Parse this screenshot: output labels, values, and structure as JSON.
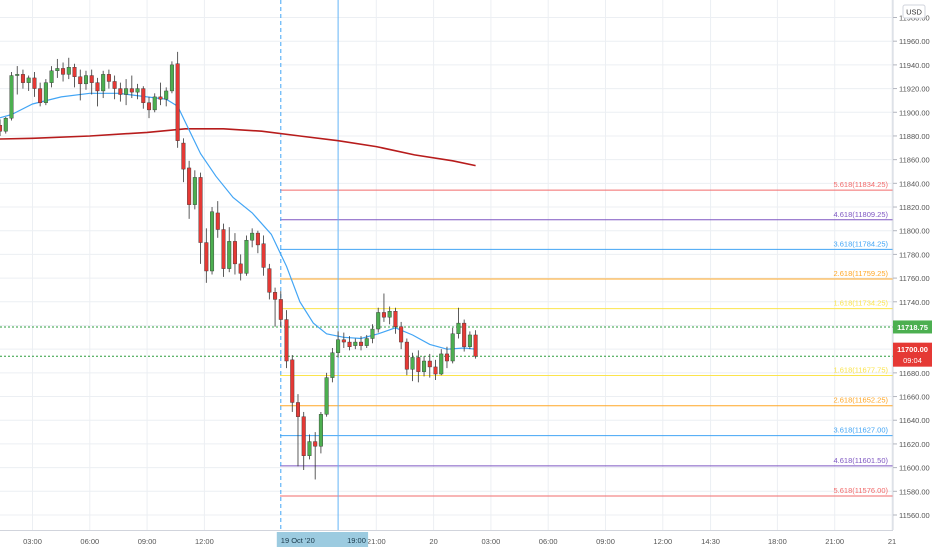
{
  "chart_data": {
    "type": "candlestick",
    "currency_label": "USD",
    "y_axis": {
      "min": 11545,
      "max": 11990,
      "ticks": [
        11980,
        11960,
        11940,
        11920,
        11900,
        11880,
        11860,
        11840,
        11820,
        11800,
        11780,
        11760,
        11740,
        11720,
        11700,
        11680,
        11660,
        11640,
        11620,
        11600,
        11580,
        11560
      ]
    },
    "x_axis": {
      "ticks": [
        {
          "label": "03:00",
          "t": 3
        },
        {
          "label": "06:00",
          "t": 6
        },
        {
          "label": "09:00",
          "t": 9
        },
        {
          "label": "12:00",
          "t": 12
        },
        {
          "label": "21:00",
          "t": 21
        },
        {
          "label": "20",
          "t": 24
        },
        {
          "label": "03:00",
          "t": 27
        },
        {
          "label": "06:00",
          "t": 30
        },
        {
          "label": "09:00",
          "t": 33
        },
        {
          "label": "12:00",
          "t": 36
        },
        {
          "label": "14:30",
          "t": 38.5
        },
        {
          "label": "18:00",
          "t": 42
        },
        {
          "label": "21:00",
          "t": 45
        },
        {
          "label": "21",
          "t": 48
        }
      ],
      "markers": [
        {
          "label": "19 Oct '20",
          "t": 16
        },
        {
          "label": "19:00",
          "t": 19
        }
      ]
    },
    "candles": [
      {
        "t": 0.1,
        "o": 11893,
        "h": 11901,
        "c": 11888,
        "l": 11883
      },
      {
        "t": 0.4,
        "o": 11888,
        "h": 11897,
        "c": 11894,
        "l": 11884
      },
      {
        "t": 0.7,
        "o": 11894,
        "h": 11898,
        "c": 11887,
        "l": 11883
      },
      {
        "t": 1.0,
        "o": 11887,
        "h": 11893,
        "c": 11889,
        "l": 11881
      },
      {
        "t": 1.3,
        "o": 11889,
        "h": 11894,
        "c": 11884,
        "l": 11880
      },
      {
        "t": 1.6,
        "o": 11884,
        "h": 11896,
        "c": 11895,
        "l": 11882
      },
      {
        "t": 1.9,
        "o": 11895,
        "h": 11934,
        "c": 11931,
        "l": 11893
      },
      {
        "t": 2.2,
        "o": 11931,
        "h": 11939,
        "c": 11932,
        "l": 11915
      },
      {
        "t": 2.5,
        "o": 11932,
        "h": 11936,
        "c": 11925,
        "l": 11920
      },
      {
        "t": 2.8,
        "o": 11925,
        "h": 11931,
        "c": 11929,
        "l": 11918
      },
      {
        "t": 3.1,
        "o": 11929,
        "h": 11934,
        "c": 11920,
        "l": 11913
      },
      {
        "t": 3.4,
        "o": 11920,
        "h": 11925,
        "c": 11908,
        "l": 11905
      },
      {
        "t": 3.7,
        "o": 11908,
        "h": 11928,
        "c": 11925,
        "l": 11906
      },
      {
        "t": 4.0,
        "o": 11925,
        "h": 11939,
        "c": 11935,
        "l": 11921
      },
      {
        "t": 4.3,
        "o": 11935,
        "h": 11945,
        "c": 11937,
        "l": 11929
      },
      {
        "t": 4.6,
        "o": 11937,
        "h": 11942,
        "c": 11932,
        "l": 11926
      },
      {
        "t": 4.9,
        "o": 11932,
        "h": 11946,
        "c": 11938,
        "l": 11928
      },
      {
        "t": 5.2,
        "o": 11938,
        "h": 11941,
        "c": 11930,
        "l": 11921
      },
      {
        "t": 5.5,
        "o": 11930,
        "h": 11936,
        "c": 11924,
        "l": 11910
      },
      {
        "t": 5.8,
        "o": 11924,
        "h": 11935,
        "c": 11931,
        "l": 11919
      },
      {
        "t": 6.1,
        "o": 11931,
        "h": 11936,
        "c": 11925,
        "l": 11915
      },
      {
        "t": 6.4,
        "o": 11925,
        "h": 11929,
        "c": 11918,
        "l": 11905
      },
      {
        "t": 6.7,
        "o": 11918,
        "h": 11935,
        "c": 11932,
        "l": 11912
      },
      {
        "t": 7.0,
        "o": 11932,
        "h": 11936,
        "c": 11926,
        "l": 11920
      },
      {
        "t": 7.3,
        "o": 11926,
        "h": 11931,
        "c": 11920,
        "l": 11911
      },
      {
        "t": 7.6,
        "o": 11920,
        "h": 11925,
        "c": 11915,
        "l": 11909
      },
      {
        "t": 7.9,
        "o": 11915,
        "h": 11928,
        "c": 11920,
        "l": 11906
      },
      {
        "t": 8.2,
        "o": 11920,
        "h": 11931,
        "c": 11917,
        "l": 11912
      },
      {
        "t": 8.5,
        "o": 11917,
        "h": 11924,
        "c": 11920,
        "l": 11911
      },
      {
        "t": 8.8,
        "o": 11920,
        "h": 11922,
        "c": 11908,
        "l": 11903
      },
      {
        "t": 9.1,
        "o": 11908,
        "h": 11913,
        "c": 11902,
        "l": 11895
      },
      {
        "t": 9.4,
        "o": 11902,
        "h": 11916,
        "c": 11913,
        "l": 11900
      },
      {
        "t": 9.7,
        "o": 11913,
        "h": 11925,
        "c": 11911,
        "l": 11906
      },
      {
        "t": 10.0,
        "o": 11911,
        "h": 11921,
        "c": 11918,
        "l": 11905
      },
      {
        "t": 10.3,
        "o": 11918,
        "h": 11943,
        "c": 11940,
        "l": 11916
      },
      {
        "t": 10.6,
        "o": 11941,
        "h": 11951,
        "c": 11876,
        "l": 11870
      },
      {
        "t": 10.9,
        "o": 11874,
        "h": 11878,
        "c": 11852,
        "l": 11841
      },
      {
        "t": 11.2,
        "o": 11853,
        "h": 11859,
        "c": 11822,
        "l": 11810
      },
      {
        "t": 11.5,
        "o": 11822,
        "h": 11851,
        "c": 11845,
        "l": 11818
      },
      {
        "t": 11.8,
        "o": 11845,
        "h": 11849,
        "c": 11790,
        "l": 11772
      },
      {
        "t": 12.1,
        "o": 11790,
        "h": 11802,
        "c": 11766,
        "l": 11756
      },
      {
        "t": 12.4,
        "o": 11766,
        "h": 11820,
        "c": 11816,
        "l": 11763
      },
      {
        "t": 12.7,
        "o": 11815,
        "h": 11825,
        "c": 11801,
        "l": 11794
      },
      {
        "t": 13.0,
        "o": 11801,
        "h": 11806,
        "c": 11768,
        "l": 11761
      },
      {
        "t": 13.3,
        "o": 11768,
        "h": 11803,
        "c": 11791,
        "l": 11765
      },
      {
        "t": 13.6,
        "o": 11791,
        "h": 11798,
        "c": 11772,
        "l": 11763
      },
      {
        "t": 13.9,
        "o": 11772,
        "h": 11780,
        "c": 11764,
        "l": 11758
      },
      {
        "t": 14.2,
        "o": 11764,
        "h": 11796,
        "c": 11792,
        "l": 11762
      },
      {
        "t": 14.5,
        "o": 11792,
        "h": 11802,
        "c": 11798,
        "l": 11786
      },
      {
        "t": 14.8,
        "o": 11798,
        "h": 11800,
        "c": 11788,
        "l": 11781
      },
      {
        "t": 15.1,
        "o": 11789,
        "h": 11796,
        "c": 11769,
        "l": 11762
      },
      {
        "t": 15.4,
        "o": 11768,
        "h": 11772,
        "c": 11748,
        "l": 11742
      },
      {
        "t": 15.7,
        "o": 11748,
        "h": 11752,
        "c": 11742,
        "l": 11719
      },
      {
        "t": 16.0,
        "o": 11742,
        "h": 11749,
        "c": 11725,
        "l": 11719
      },
      {
        "t": 16.3,
        "o": 11725,
        "h": 11733,
        "c": 11690,
        "l": 11684
      },
      {
        "t": 16.6,
        "o": 11691,
        "h": 11695,
        "c": 11655,
        "l": 11647
      },
      {
        "t": 16.9,
        "o": 11655,
        "h": 11662,
        "c": 11643,
        "l": 11601
      },
      {
        "t": 17.2,
        "o": 11643,
        "h": 11647,
        "c": 11610,
        "l": 11598
      },
      {
        "t": 17.5,
        "o": 11610,
        "h": 11628,
        "c": 11622,
        "l": 11607
      },
      {
        "t": 17.8,
        "o": 11622,
        "h": 11630,
        "c": 11618,
        "l": 11590
      },
      {
        "t": 18.1,
        "o": 11618,
        "h": 11647,
        "c": 11645,
        "l": 11612
      },
      {
        "t": 18.4,
        "o": 11645,
        "h": 11680,
        "c": 11676,
        "l": 11643
      },
      {
        "t": 18.7,
        "o": 11676,
        "h": 11701,
        "c": 11697,
        "l": 11672
      },
      {
        "t": 19.0,
        "o": 11697,
        "h": 11715,
        "c": 11708,
        "l": 11693
      },
      {
        "t": 19.3,
        "o": 11708,
        "h": 11714,
        "c": 11706,
        "l": 11701
      },
      {
        "t": 19.6,
        "o": 11706,
        "h": 11711,
        "c": 11702,
        "l": 11699
      },
      {
        "t": 19.9,
        "o": 11703,
        "h": 11709,
        "c": 11706,
        "l": 11700
      },
      {
        "t": 20.2,
        "o": 11706,
        "h": 11711,
        "c": 11703,
        "l": 11699
      },
      {
        "t": 20.5,
        "o": 11703,
        "h": 11712,
        "c": 11709,
        "l": 11701
      },
      {
        "t": 20.8,
        "o": 11709,
        "h": 11721,
        "c": 11717,
        "l": 11705
      },
      {
        "t": 21.1,
        "o": 11717,
        "h": 11735,
        "c": 11731,
        "l": 11714
      },
      {
        "t": 21.4,
        "o": 11731,
        "h": 11747,
        "c": 11727,
        "l": 11723
      },
      {
        "t": 21.7,
        "o": 11727,
        "h": 11736,
        "c": 11732,
        "l": 11721
      },
      {
        "t": 22.0,
        "o": 11732,
        "h": 11735,
        "c": 11719,
        "l": 11713
      },
      {
        "t": 22.3,
        "o": 11719,
        "h": 11723,
        "c": 11706,
        "l": 11700
      },
      {
        "t": 22.6,
        "o": 11706,
        "h": 11709,
        "c": 11683,
        "l": 11678
      },
      {
        "t": 22.9,
        "o": 11683,
        "h": 11697,
        "c": 11693,
        "l": 11673
      },
      {
        "t": 23.2,
        "o": 11693,
        "h": 11699,
        "c": 11681,
        "l": 11672
      },
      {
        "t": 23.5,
        "o": 11681,
        "h": 11694,
        "c": 11690,
        "l": 11677
      },
      {
        "t": 23.8,
        "o": 11690,
        "h": 11696,
        "c": 11685,
        "l": 11676
      },
      {
        "t": 24.1,
        "o": 11685,
        "h": 11691,
        "c": 11679,
        "l": 11674
      },
      {
        "t": 24.4,
        "o": 11679,
        "h": 11700,
        "c": 11696,
        "l": 11678
      },
      {
        "t": 24.7,
        "o": 11696,
        "h": 11702,
        "c": 11690,
        "l": 11684
      },
      {
        "t": 25.0,
        "o": 11690,
        "h": 11718,
        "c": 11713,
        "l": 11688
      },
      {
        "t": 25.3,
        "o": 11713,
        "h": 11735,
        "c": 11722,
        "l": 11709
      },
      {
        "t": 25.6,
        "o": 11722,
        "h": 11725,
        "c": 11702,
        "l": 11698
      },
      {
        "t": 25.9,
        "o": 11702,
        "h": 11715,
        "c": 11712,
        "l": 11700
      },
      {
        "t": 26.2,
        "o": 11712,
        "h": 11716,
        "c": 11694,
        "l": 11692
      }
    ],
    "ema_fast": [
      {
        "t": 0.1,
        "v": 11890
      },
      {
        "t": 1.9,
        "v": 11898
      },
      {
        "t": 3.0,
        "v": 11907
      },
      {
        "t": 4.5,
        "v": 11913
      },
      {
        "t": 6.0,
        "v": 11916
      },
      {
        "t": 7.5,
        "v": 11916
      },
      {
        "t": 9.0,
        "v": 11913
      },
      {
        "t": 10.0,
        "v": 11911
      },
      {
        "t": 10.6,
        "v": 11905
      },
      {
        "t": 11.2,
        "v": 11885
      },
      {
        "t": 11.8,
        "v": 11865
      },
      {
        "t": 12.6,
        "v": 11846
      },
      {
        "t": 13.5,
        "v": 11828
      },
      {
        "t": 14.5,
        "v": 11815
      },
      {
        "t": 15.5,
        "v": 11797
      },
      {
        "t": 16.3,
        "v": 11770
      },
      {
        "t": 17.0,
        "v": 11740
      },
      {
        "t": 17.7,
        "v": 11722
      },
      {
        "t": 18.4,
        "v": 11713
      },
      {
        "t": 19.3,
        "v": 11710
      },
      {
        "t": 20.2,
        "v": 11709
      },
      {
        "t": 21.1,
        "v": 11713
      },
      {
        "t": 22.0,
        "v": 11718
      },
      {
        "t": 22.9,
        "v": 11712
      },
      {
        "t": 23.8,
        "v": 11704
      },
      {
        "t": 24.7,
        "v": 11700
      },
      {
        "t": 25.6,
        "v": 11701
      },
      {
        "t": 26.2,
        "v": 11700
      }
    ],
    "ma_slow": [
      {
        "t": 0.1,
        "v": 11877
      },
      {
        "t": 3,
        "v": 11878
      },
      {
        "t": 6,
        "v": 11880
      },
      {
        "t": 9,
        "v": 11883
      },
      {
        "t": 11,
        "v": 11886
      },
      {
        "t": 13,
        "v": 11886
      },
      {
        "t": 15,
        "v": 11884
      },
      {
        "t": 17,
        "v": 11880
      },
      {
        "t": 19,
        "v": 11876
      },
      {
        "t": 21,
        "v": 11871
      },
      {
        "t": 23,
        "v": 11864
      },
      {
        "t": 25,
        "v": 11859
      },
      {
        "t": 26.2,
        "v": 11855
      }
    ],
    "fib_levels": [
      {
        "label": "5.618(11834.25)",
        "price": 11834.25,
        "color": "#f26b6b"
      },
      {
        "label": "4.618(11809.25)",
        "price": 11809.25,
        "color": "#7e57c2"
      },
      {
        "label": "3.618(11784.25)",
        "price": 11784.25,
        "color": "#42a5f5"
      },
      {
        "label": "2.618(11759.25)",
        "price": 11759.25,
        "color": "#ffa726"
      },
      {
        "label": "1.618(11734.25)",
        "price": 11734.25,
        "color": "#fbe44d"
      },
      {
        "label": "1.618(11677.75)",
        "price": 11677.75,
        "color": "#fbe44d"
      },
      {
        "label": "2.618(11652.25)",
        "price": 11652.25,
        "color": "#ffa726"
      },
      {
        "label": "3.618(11627.00)",
        "price": 11627.0,
        "color": "#42a5f5"
      },
      {
        "label": "4.618(11601.50)",
        "price": 11601.5,
        "color": "#7e57c2"
      },
      {
        "label": "5.618(11576.00)",
        "price": 11576.0,
        "color": "#f26b6b"
      }
    ],
    "price_lines": [
      {
        "price": 11718.75,
        "label": "11718.75",
        "bg": "#4caf50",
        "line": "#2e9e3f"
      },
      {
        "price": 11694.0,
        "label": "11694.00",
        "bg": "#4caf50",
        "line": "#2e9e3f"
      }
    ],
    "current_price": {
      "price": 11700.0,
      "label": "11700.00",
      "timer": "09:04",
      "bg": "#e53935"
    },
    "colors": {
      "up": "#4caf50",
      "down": "#e53935",
      "ema_fast": "#42a5f5",
      "ma_slow": "#b71c1c",
      "grid": "#eceff3"
    }
  }
}
